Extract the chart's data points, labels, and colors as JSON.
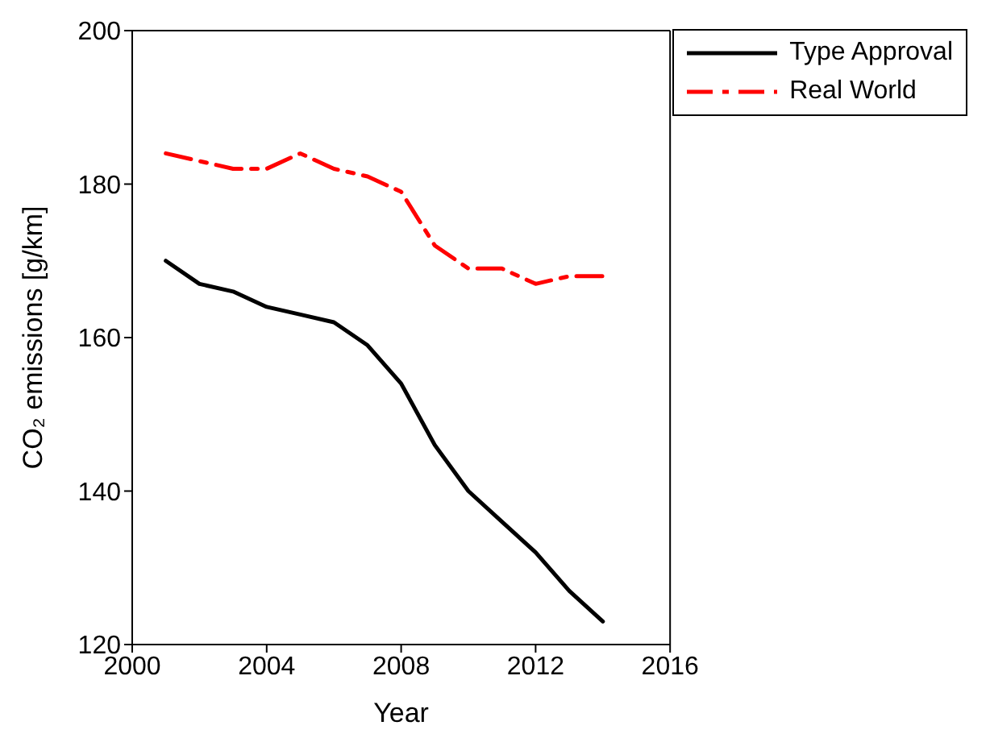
{
  "chart_data": {
    "type": "line",
    "xlabel": "Year",
    "ylabel": "CO₂ emissions [g/km]",
    "x": [
      2001,
      2002,
      2003,
      2004,
      2005,
      2006,
      2007,
      2008,
      2009,
      2010,
      2011,
      2012,
      2013,
      2014
    ],
    "series": [
      {
        "name": "Type Approval",
        "color": "#000000",
        "line_style": "solid",
        "values": [
          170,
          167,
          166,
          164,
          163,
          162,
          159,
          154,
          146,
          140,
          136,
          132,
          127,
          123
        ]
      },
      {
        "name": "Real World",
        "color": "#ff0000",
        "line_style": "dashed",
        "values": [
          184,
          183,
          182,
          182,
          184,
          182,
          181,
          179,
          172,
          169,
          169,
          167,
          168,
          168
        ]
      }
    ],
    "xlim": [
      2000,
      2016
    ],
    "xticks": [
      2000,
      2004,
      2008,
      2012,
      2016
    ],
    "ylim": [
      120,
      200
    ],
    "yticks": [
      120,
      140,
      160,
      180,
      200
    ],
    "grid": false,
    "legend": "top right",
    "marker": "none"
  }
}
